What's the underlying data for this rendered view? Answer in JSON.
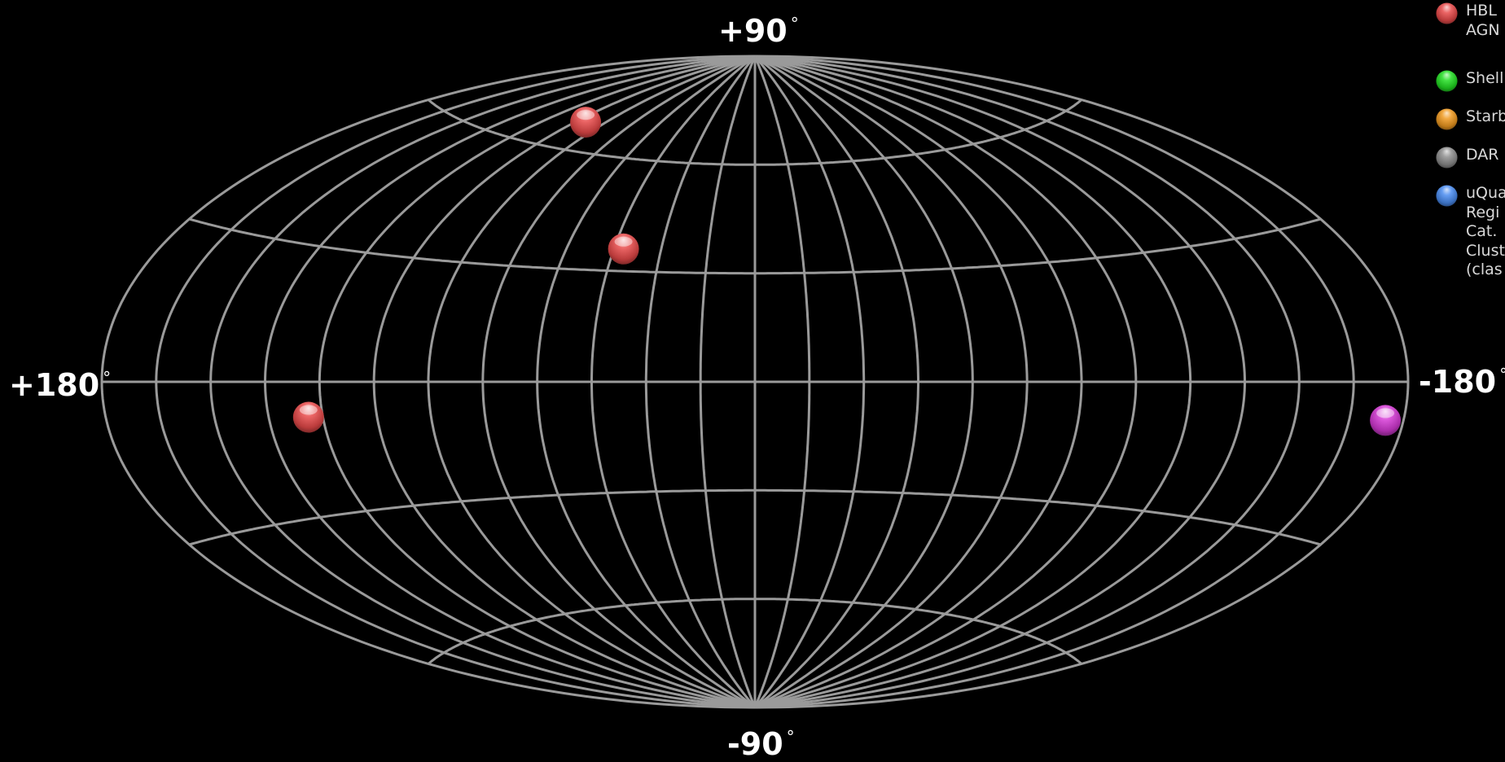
{
  "map": {
    "projection": "aitoff",
    "grid_color": "#9a9a9a",
    "background": "#000000",
    "lon_grid_step_deg": 15,
    "lat_grid_step_deg": 30,
    "labels": {
      "north": "+90",
      "south": "-90",
      "west": "+180",
      "east": "-180",
      "degree_symbol": "°"
    }
  },
  "legend": [
    {
      "label": "HBL\nAGN",
      "color": "#e84a4a"
    },
    {
      "label": "Shell",
      "color": "#22dd22"
    },
    {
      "label": "Starb",
      "color": "#f09a20"
    },
    {
      "label": "DAR",
      "color": "#8e8e8e"
    },
    {
      "label": "uQua\nRegi\nCat.\nClust\n(clas",
      "color": "#4a8cf0"
    }
  ],
  "sources": [
    {
      "lon": 100,
      "lat": 67,
      "class": "HBL AGN",
      "color": "#e84a4a"
    },
    {
      "lon": 42,
      "lat": 36,
      "class": "HBL AGN",
      "color": "#e84a4a"
    },
    {
      "lon": 124,
      "lat": -8,
      "class": "HBL AGN",
      "color": "#e84a4a"
    },
    {
      "lon": -175,
      "lat": -7,
      "class": "",
      "color": "#d63ad6"
    }
  ]
}
